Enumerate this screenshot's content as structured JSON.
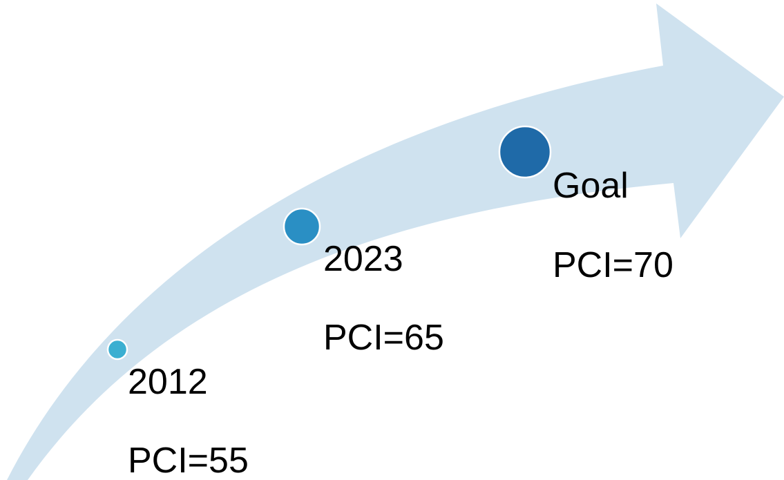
{
  "nodes": [
    {
      "label": "2012",
      "detail": "PCI=55"
    },
    {
      "label": "2023",
      "detail": "PCI=65"
    },
    {
      "label": "Goal",
      "detail": "PCI=70"
    }
  ]
}
